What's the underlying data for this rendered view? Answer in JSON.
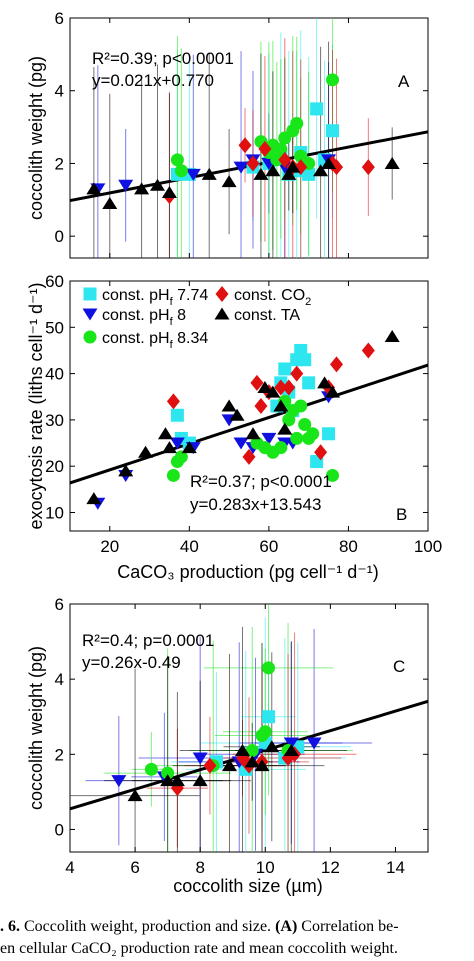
{
  "colors": {
    "cyan": "#2ee6f0",
    "blue": "#1010e0",
    "green": "#19e619",
    "red": "#e01010",
    "black": "#000000"
  },
  "legend": [
    {
      "key": "cyan",
      "label": "const. pH",
      "sub": "f",
      "suffix": " 7.74",
      "marker": "square"
    },
    {
      "key": "red",
      "label": "const. CO",
      "sub": "2",
      "suffix": "",
      "marker": "diamond"
    },
    {
      "key": "blue",
      "label": "const. pH",
      "sub": "f",
      "suffix": " 8",
      "marker": "triangle-down"
    },
    {
      "key": "black",
      "label": "const. TA",
      "sub": "",
      "suffix": "",
      "marker": "triangle-up"
    },
    {
      "key": "green",
      "label": "const. pH",
      "sub": "f",
      "suffix": " 8.34",
      "marker": "circle"
    }
  ],
  "caption": {
    "line1_prefix": ". 6.",
    "line1_text": " Coccolith weight, production and size. ",
    "line1_bold": "(A)",
    "line1_tail": " Correlation be-",
    "line2": "en cellular CaCO₂ production rate and mean coccolith weight."
  },
  "chart_data": [
    {
      "type": "scatter",
      "panel": "A",
      "xlabel": "",
      "ylabel": "coccolith weight (pg)",
      "xlim": [
        10,
        100
      ],
      "ylim": [
        -0.6,
        6
      ],
      "yticks": [
        0,
        2,
        4,
        6
      ],
      "stats_line1": "R²=0.39; p<0.0001",
      "stats_line2": "y=0.021x+0.770",
      "fit": {
        "slope": 0.021,
        "intercept": 0.77
      },
      "series": [
        {
          "key": "cyan",
          "x": [
            37,
            40,
            56,
            60,
            63,
            65,
            67,
            68,
            70,
            72,
            74,
            76
          ],
          "y": [
            1.7,
            1.7,
            1.9,
            2.0,
            2.2,
            1.7,
            1.8,
            2.3,
            1.7,
            3.5,
            2.1,
            2.9
          ]
        },
        {
          "key": "blue",
          "x": [
            17,
            24,
            41,
            53,
            56,
            60,
            64,
            75
          ],
          "y": [
            1.3,
            1.4,
            1.7,
            1.9,
            2.1,
            2.0,
            1.9,
            2.1
          ]
        },
        {
          "key": "green",
          "x": [
            37,
            38,
            58,
            60,
            61,
            62,
            63,
            64,
            66,
            67,
            68,
            70,
            76
          ],
          "y": [
            2.1,
            1.8,
            2.6,
            2.3,
            2.5,
            2.1,
            2.4,
            2.7,
            2.9,
            3.1,
            2.2,
            2.0,
            4.3
          ]
        },
        {
          "key": "red",
          "x": [
            35,
            54,
            56,
            59,
            64,
            66,
            68,
            76,
            77,
            85
          ],
          "y": [
            1.1,
            2.5,
            2.0,
            2.4,
            2.1,
            1.9,
            1.9,
            2.0,
            1.9,
            1.9
          ]
        },
        {
          "key": "black",
          "x": [
            16,
            20,
            28,
            32,
            35,
            45,
            50,
            58,
            61,
            65,
            66,
            73,
            75,
            91
          ],
          "y": [
            1.3,
            0.9,
            1.3,
            1.4,
            1.2,
            1.7,
            1.5,
            1.7,
            1.8,
            1.7,
            1.9,
            1.8,
            2.0,
            2.0
          ]
        }
      ]
    },
    {
      "type": "scatter",
      "panel": "B",
      "xlabel": "CaCO₃ production (pg cell⁻¹ d⁻¹)",
      "ylabel": "exocytosis rate (liths cell⁻¹ d⁻¹)",
      "xlim": [
        10,
        100
      ],
      "ylim": [
        6,
        60
      ],
      "xticks": [
        20,
        40,
        60,
        80,
        100
      ],
      "yticks": [
        10,
        20,
        30,
        40,
        50,
        60
      ],
      "stats_line1": "R²=0.37; p<0.0001",
      "stats_line2": "y=0.283x+13.543",
      "fit": {
        "slope": 0.283,
        "intercept": 13.543
      },
      "series": [
        {
          "key": "cyan",
          "x": [
            37,
            38,
            40,
            62,
            63,
            64,
            65,
            66,
            67,
            68,
            69,
            70,
            72,
            75
          ],
          "y": [
            31,
            26,
            25,
            33,
            38,
            41,
            36,
            32,
            43,
            45,
            43,
            38,
            21,
            27
          ]
        },
        {
          "key": "blue",
          "x": [
            17,
            24,
            37,
            41,
            50,
            53,
            56,
            60,
            64,
            66,
            75
          ],
          "y": [
            12,
            18,
            25,
            24,
            30,
            25,
            24,
            26,
            25,
            25,
            35
          ]
        },
        {
          "key": "green",
          "x": [
            36,
            37,
            38,
            57,
            59,
            61,
            63,
            64,
            65,
            66,
            67,
            68,
            69,
            70,
            71,
            76
          ],
          "y": [
            18,
            21,
            22,
            25,
            24,
            23,
            24,
            34,
            30,
            32,
            26,
            33,
            29,
            26,
            27,
            18
          ]
        },
        {
          "key": "red",
          "x": [
            36,
            55,
            57,
            58,
            60,
            63,
            65,
            67,
            73,
            75,
            77,
            85
          ],
          "y": [
            34,
            22,
            38,
            33,
            36,
            37,
            37,
            40,
            23,
            37,
            42,
            45
          ]
        },
        {
          "key": "black",
          "x": [
            16,
            24,
            29,
            34,
            35,
            40,
            50,
            52,
            56,
            59,
            61,
            63,
            64,
            74,
            76,
            91
          ],
          "y": [
            13,
            19,
            23,
            27,
            24,
            24,
            33,
            31,
            27,
            37,
            36,
            33,
            28,
            38,
            36,
            48
          ]
        }
      ]
    },
    {
      "type": "scatter",
      "panel": "C",
      "xlabel": "coccolith size (µm)",
      "ylabel": "coccolith weight (pg)",
      "xlim": [
        4,
        15
      ],
      "ylim": [
        -0.6,
        6
      ],
      "xticks": [
        4,
        6,
        8,
        10,
        12,
        14
      ],
      "yticks": [
        0,
        2,
        4,
        6
      ],
      "stats_line1": "R²=0.4; p=0.0001",
      "stats_line2": "y=0.26x-0.49",
      "fit": {
        "slope": 0.26,
        "intercept": -0.49
      },
      "series": [
        {
          "key": "cyan",
          "x": [
            8.5,
            9.4,
            10.0,
            10.1,
            10.6,
            11.0
          ],
          "y": [
            1.8,
            1.6,
            2.3,
            3.0,
            1.9,
            2.2
          ]
        },
        {
          "key": "blue",
          "x": [
            5.5,
            6.9,
            8.0,
            9.2,
            9.7,
            10.8,
            11.5
          ],
          "y": [
            1.3,
            1.4,
            1.9,
            1.8,
            2.0,
            2.3,
            2.3
          ]
        },
        {
          "key": "green",
          "x": [
            6.5,
            7.0,
            8.4,
            9.6,
            9.9,
            10.0,
            10.1,
            10.7
          ],
          "y": [
            1.6,
            1.5,
            1.7,
            2.1,
            2.5,
            2.6,
            4.3,
            2.1
          ]
        },
        {
          "key": "red",
          "x": [
            7.3,
            8.3,
            9.3,
            9.5,
            9.9,
            10.7,
            10.9
          ],
          "y": [
            1.1,
            1.7,
            1.9,
            1.7,
            1.8,
            1.9,
            2.0
          ]
        },
        {
          "key": "black",
          "x": [
            6.0,
            7.0,
            7.3,
            8.0,
            8.9,
            9.3,
            9.6,
            9.9,
            10.2,
            10.8
          ],
          "y": [
            0.9,
            1.3,
            1.3,
            1.3,
            1.7,
            2.1,
            1.8,
            1.7,
            2.2,
            2.1
          ]
        }
      ]
    }
  ]
}
